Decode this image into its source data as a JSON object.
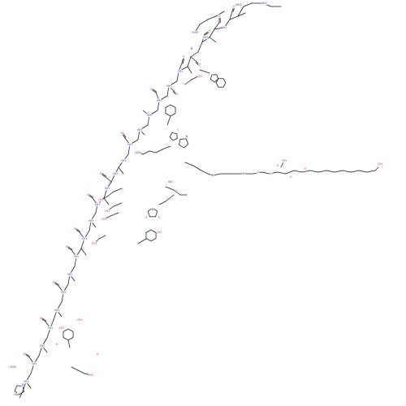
{
  "figure": {
    "type": "skeletal-formula",
    "molecule_kind": "stapled lipidated peptide",
    "background": "#ffffff",
    "bond_color": "#1a1a1a"
  },
  "colors": {
    "oxygen": "#e8261c",
    "nitrogen": "#2f3fcf",
    "sulfur": "#c9a800",
    "carbon_bond": "#1a1a1a"
  },
  "atom_labels": {
    "O": "O",
    "OH": "OH",
    "HO": "HO",
    "NH": "NH",
    "HN": "HN",
    "N": "N",
    "NH2": "NH2",
    "H2N": "H2N",
    "S": "S",
    "H": "H"
  }
}
